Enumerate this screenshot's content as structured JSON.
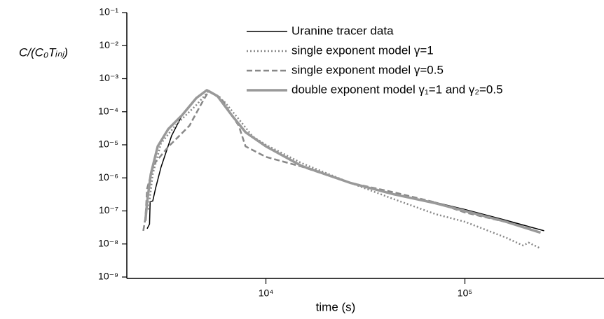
{
  "chart_data": {
    "type": "line",
    "xlabel": "time (s)",
    "ylabel": "C/(C₀Tᵢₙⱼ)",
    "xscale": "log",
    "yscale": "log",
    "xlim": [
      2000,
      500000
    ],
    "ylim": [
      1e-09,
      0.1
    ],
    "xticks": [
      {
        "value": 10000,
        "label": "10⁴"
      },
      {
        "value": 100000,
        "label": "10⁵"
      }
    ],
    "yticks": [
      {
        "value": 1e-09,
        "label": "10⁻⁹"
      },
      {
        "value": 1e-08,
        "label": "10⁻⁸"
      },
      {
        "value": 1e-07,
        "label": "10⁻⁷"
      },
      {
        "value": 1e-06,
        "label": "10⁻⁶"
      },
      {
        "value": 1e-05,
        "label": "10⁻⁵"
      },
      {
        "value": 0.0001,
        "label": "10⁻⁴"
      },
      {
        "value": 0.001,
        "label": "10⁻³"
      },
      {
        "value": 0.01,
        "label": "10⁻²"
      },
      {
        "value": 0.1,
        "label": "10⁻¹"
      }
    ],
    "legend": "upper right",
    "series": [
      {
        "name": "Uranine tracer data",
        "color": "#000000",
        "style": "solid",
        "width": 1.5,
        "x": [
          2530,
          2600,
          2620,
          2700,
          2790,
          2970,
          3360,
          3800,
          4470,
          5050,
          5700,
          6710,
          7900,
          10000,
          15100,
          26700,
          43700,
          71200,
          100000,
          159000,
          250000
        ],
        "values": [
          2.9e-08,
          4e-08,
          1.9e-07,
          2e-07,
          4.9e-07,
          2.1e-06,
          1.9e-05,
          8.1e-05,
          0.00027,
          0.00044,
          0.0003,
          8.1e-05,
          2.4e-05,
          9e-06,
          2.3e-06,
          7e-07,
          3.2e-07,
          1.8e-07,
          1.1e-07,
          5.3e-08,
          2.5e-08
        ]
      },
      {
        "name": "single exponent model γ=1",
        "color": "#888888",
        "style": "dotted",
        "width": 2.5,
        "x": [
          2570,
          2700,
          2970,
          3500,
          4470,
          5170,
          6190,
          7300,
          8570,
          10000,
          15100,
          26700,
          43700,
          71200,
          100000,
          159000,
          196000,
          209000,
          236000
        ],
        "values": [
          1.1e-07,
          1.3e-06,
          1.1e-05,
          3.8e-05,
          0.00016,
          0.00043,
          0.0002,
          6e-05,
          1.8e-05,
          1e-05,
          2.8e-06,
          7e-07,
          2.3e-07,
          8e-08,
          4.7e-08,
          1.6e-08,
          9e-09,
          1.1e-08,
          7.7e-09
        ]
      },
      {
        "name": "single exponent model γ=0.5",
        "color": "#888888",
        "style": "dashed",
        "width": 2.5,
        "x": [
          2420,
          2480,
          2530,
          2740,
          3230,
          3800,
          4130,
          4700,
          5170,
          5950,
          6710,
          7300,
          7900,
          10000,
          15100,
          26700,
          43700,
          71200,
          100000,
          159000,
          220000
        ],
        "values": [
          2.5e-08,
          6e-08,
          4.8e-07,
          2.6e-06,
          8.7e-06,
          2.3e-05,
          3.8e-05,
          0.00016,
          0.00043,
          0.00026,
          8e-05,
          3.8e-05,
          9e-06,
          4.3e-06,
          2.2e-06,
          7e-07,
          3.7e-07,
          1.8e-07,
          9e-08,
          4.7e-08,
          2.9e-08
        ]
      },
      {
        "name": "double exponent model γ₁=1 and γ₂=0.5",
        "color": "#999999",
        "style": "solid",
        "width": 3.5,
        "x": [
          2480,
          2530,
          2640,
          2860,
          3230,
          3800,
          4470,
          5050,
          5700,
          6710,
          7900,
          10000,
          15100,
          26700,
          43700,
          71200,
          100000,
          159000,
          240000
        ],
        "values": [
          5e-08,
          1.9e-07,
          1.3e-06,
          9e-06,
          3e-05,
          8e-05,
          0.00026,
          0.00045,
          0.0003,
          8.1e-05,
          2.4e-05,
          9e-06,
          2.3e-06,
          7e-07,
          3.2e-07,
          1.7e-07,
          1e-07,
          4.8e-08,
          2.2e-08
        ]
      }
    ]
  }
}
